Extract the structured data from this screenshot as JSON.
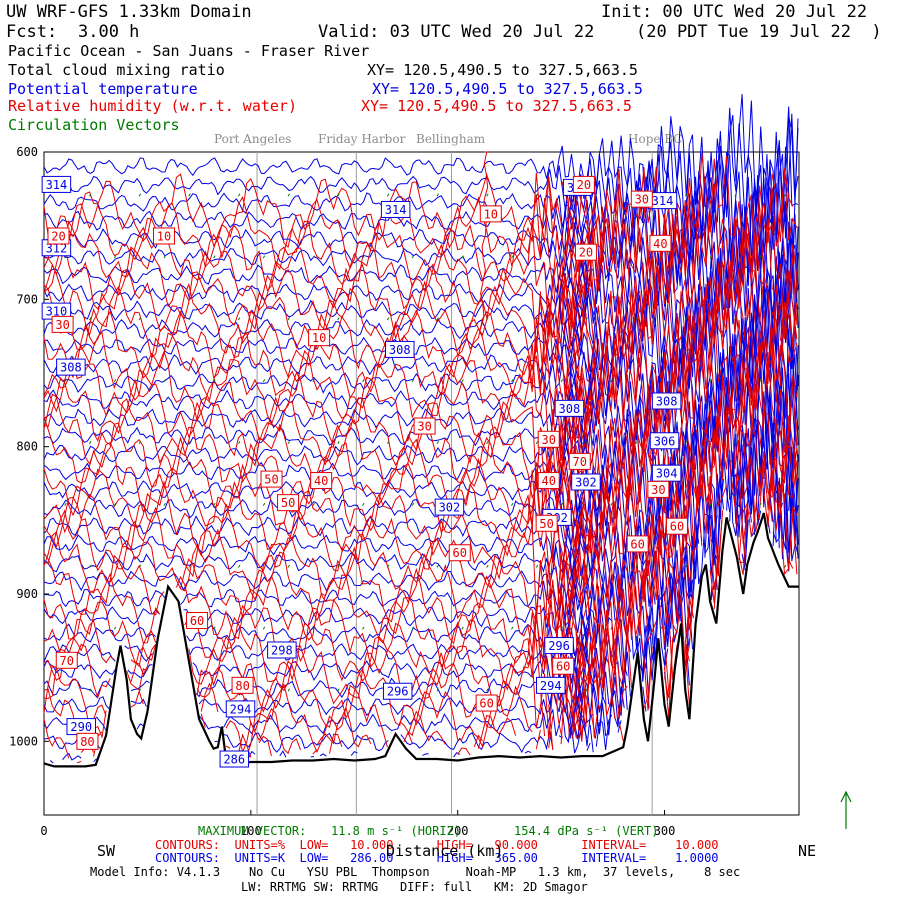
{
  "header": {
    "model": "UW WRF-GFS 1.33km Domain",
    "init": "Init: 00 UTC Wed 20 Jul 22",
    "fcst_label": "Fcst:",
    "fcst_value": "3.00 h",
    "valid": "Valid: 03 UTC Wed 20 Jul 22",
    "local": "(20 PDT Tue 19 Jul 22  )",
    "region": "Pacific Ocean - San Juans - Fraser River"
  },
  "fields": [
    {
      "name": "Total cloud mixing ratio",
      "xy": "XY= 120.5,490.5 to 327.5,663.5",
      "color": "#000000"
    },
    {
      "name": "Potential temperature",
      "xy": "XY= 120.5,490.5 to 327.5,663.5",
      "color": "#0000e6"
    },
    {
      "name": "Relative humidity (w.r.t. water)",
      "xy": "XY= 120.5,490.5 to 327.5,663.5",
      "color": "#e60000"
    },
    {
      "name": "Circulation Vectors",
      "xy": "",
      "color": "#007a00"
    }
  ],
  "places": [
    "Port Angeles",
    "Friday Harbor",
    "Bellingham",
    "Hope BC"
  ],
  "footer": {
    "sw": "SW",
    "ne": "NE",
    "xlabel": "Distance (km)",
    "max_vector_label": "MAXIMUM VECTOR:",
    "max_vector_horiz": "11.8 m s⁻¹ (HORIZ)",
    "max_vector_vert": "154.4 dPa s⁻¹ (VERT)",
    "contours_rh": "CONTOURS:  UNITS=%  LOW=   10.000      HIGH=   90.000      INTERVAL=    10.000",
    "contours_theta": "CONTOURS:  UNITS=K  LOW=   286.00      HIGH=   365.00      INTERVAL=    1.0000",
    "model_info": "Model Info: V4.1.3    No Cu   YSU PBL  Thompson     Noah-MP   1.3 km,  37 levels,    8 sec",
    "physics": "LW: RRTMG SW: RRTMG   DIFF: full   KM: 2D Smagor"
  },
  "chart_data": {
    "type": "line",
    "title": "",
    "xlabel": "Distance (km)",
    "ylabel": "",
    "xlim": [
      0,
      365
    ],
    "ylim": [
      1050,
      600
    ],
    "x_ticks": [
      0,
      100,
      200,
      300
    ],
    "y_ticks": [
      600,
      700,
      800,
      900,
      1000
    ],
    "y_tick_labels": [
      "600",
      "700",
      "800",
      "900",
      "1000"
    ],
    "place_x": [
      103,
      151,
      197,
      294
    ],
    "terrain": {
      "x": [
        0,
        5,
        10,
        15,
        20,
        25,
        30,
        35,
        37,
        40,
        42,
        45,
        47,
        50,
        55,
        60,
        65,
        70,
        75,
        80,
        82,
        84,
        86,
        88,
        90,
        92,
        95,
        100,
        110,
        120,
        130,
        140,
        150,
        160,
        165,
        170,
        175,
        180,
        190,
        200,
        210,
        220,
        230,
        240,
        250,
        260,
        270,
        280,
        282,
        285,
        287,
        290,
        292,
        295,
        297,
        300,
        302,
        305,
        308,
        310,
        312,
        315,
        318,
        320,
        322,
        325,
        328,
        330,
        335,
        338,
        340,
        343,
        345,
        348,
        350,
        355,
        360,
        365
      ],
      "p": [
        1015,
        1017,
        1017,
        1017,
        1017,
        1016,
        996,
        950,
        935,
        958,
        985,
        995,
        998,
        980,
        930,
        895,
        905,
        945,
        985,
        1000,
        1005,
        1004,
        990,
        1012,
        1014,
        1015,
        1015,
        1014,
        1014,
        1013,
        1013,
        1012,
        1013,
        1012,
        1010,
        995,
        1005,
        1012,
        1012,
        1013,
        1011,
        1010,
        1011,
        1010,
        1011,
        1010,
        1010,
        1004,
        990,
        960,
        940,
        985,
        1000,
        960,
        930,
        975,
        990,
        950,
        920,
        965,
        985,
        920,
        888,
        880,
        905,
        920,
        870,
        848,
        875,
        900,
        880,
        865,
        858,
        845,
        862,
        880,
        895,
        895
      ]
    },
    "series": [
      {
        "name": "Potential temperature",
        "color": "#0000e6",
        "units": "K",
        "low": 286,
        "high": 365,
        "interval": 1,
        "labels": [
          {
            "text": "314",
            "x": 6,
            "p": 622
          },
          {
            "text": "312",
            "x": 6,
            "p": 665
          },
          {
            "text": "310",
            "x": 6,
            "p": 708
          },
          {
            "text": "308",
            "x": 13,
            "p": 746
          },
          {
            "text": "314",
            "x": 170,
            "p": 639
          },
          {
            "text": "308",
            "x": 172,
            "p": 734
          },
          {
            "text": "302",
            "x": 196,
            "p": 841
          },
          {
            "text": "298",
            "x": 115,
            "p": 938
          },
          {
            "text": "296",
            "x": 171,
            "p": 966
          },
          {
            "text": "294",
            "x": 95,
            "p": 978
          },
          {
            "text": "290",
            "x": 18,
            "p": 990
          },
          {
            "text": "286",
            "x": 92,
            "p": 1012
          },
          {
            "text": "314",
            "x": 258,
            "p": 624
          },
          {
            "text": "308",
            "x": 254,
            "p": 774
          },
          {
            "text": "302",
            "x": 248,
            "p": 848
          },
          {
            "text": "302",
            "x": 262,
            "p": 824
          },
          {
            "text": "296",
            "x": 249,
            "p": 935
          },
          {
            "text": "294",
            "x": 245,
            "p": 962
          },
          {
            "text": "308",
            "x": 301,
            "p": 769
          },
          {
            "text": "306",
            "x": 300,
            "p": 796
          },
          {
            "text": "304",
            "x": 301,
            "p": 818
          },
          {
            "text": "314",
            "x": 299,
            "p": 633
          }
        ]
      },
      {
        "name": "Relative humidity (w.r.t. water)",
        "color": "#e60000",
        "units": "%",
        "low": 10,
        "high": 90,
        "interval": 10,
        "labels": [
          {
            "text": "20",
            "x": 7,
            "p": 657
          },
          {
            "text": "10",
            "x": 58,
            "p": 657
          },
          {
            "text": "30",
            "x": 9,
            "p": 717
          },
          {
            "text": "10",
            "x": 133,
            "p": 726
          },
          {
            "text": "30",
            "x": 184,
            "p": 786
          },
          {
            "text": "50",
            "x": 110,
            "p": 822
          },
          {
            "text": "40",
            "x": 134,
            "p": 823
          },
          {
            "text": "50",
            "x": 118,
            "p": 838
          },
          {
            "text": "60",
            "x": 201,
            "p": 872
          },
          {
            "text": "60",
            "x": 74,
            "p": 918
          },
          {
            "text": "70",
            "x": 11,
            "p": 945
          },
          {
            "text": "80",
            "x": 96,
            "p": 962
          },
          {
            "text": "60",
            "x": 214,
            "p": 974
          },
          {
            "text": "80",
            "x": 21,
            "p": 1000
          },
          {
            "text": "10",
            "x": 216,
            "p": 642
          },
          {
            "text": "30",
            "x": 244,
            "p": 795
          },
          {
            "text": "40",
            "x": 244,
            "p": 823
          },
          {
            "text": "50",
            "x": 243,
            "p": 852
          },
          {
            "text": "60",
            "x": 287,
            "p": 866
          },
          {
            "text": "60",
            "x": 251,
            "p": 949
          },
          {
            "text": "70",
            "x": 259,
            "p": 810
          },
          {
            "text": "20",
            "x": 261,
            "p": 622
          },
          {
            "text": "20",
            "x": 262,
            "p": 668
          },
          {
            "text": "30",
            "x": 289,
            "p": 632
          },
          {
            "text": "40",
            "x": 298,
            "p": 662
          },
          {
            "text": "60",
            "x": 306,
            "p": 854
          },
          {
            "text": "30",
            "x": 297,
            "p": 829
          }
        ]
      },
      {
        "name": "Total cloud mixing ratio",
        "color": "#000000",
        "values": []
      },
      {
        "name": "Circulation Vectors",
        "color": "#007a00",
        "values": []
      }
    ]
  }
}
